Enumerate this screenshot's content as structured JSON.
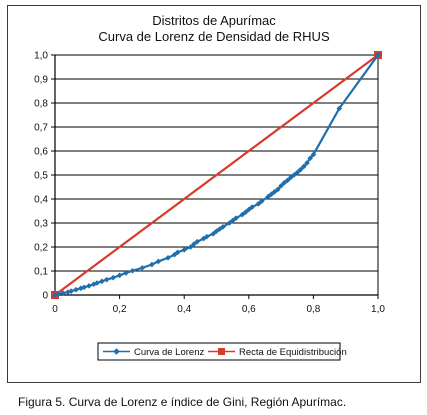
{
  "caption": "Figura 5. Curva de Lorenz e índice de Gini, Región Apurímac.",
  "chart_data": {
    "type": "line",
    "title": "Distritos de Apurímac",
    "subtitle": "Curva de Lorenz de Densidad de RHUS",
    "xlabel": "",
    "ylabel": "",
    "xlim": [
      0,
      1
    ],
    "ylim": [
      0,
      1
    ],
    "x_ticks": [
      "0",
      "0,2",
      "0,4",
      "0,6",
      "0,8",
      "1,0"
    ],
    "y_ticks": [
      "0",
      "0,1",
      "0,2",
      "0,3",
      "0,4",
      "0,5",
      "0,6",
      "0,7",
      "0,8",
      "0,9",
      "1,0"
    ],
    "grid": "horizontal",
    "legend_position": "bottom",
    "series": [
      {
        "name": "Curva de Lorenz",
        "color": "#1f6fad",
        "marker": "diamond",
        "points": [
          [
            0.0,
            0.0
          ],
          [
            0.01,
            0.004
          ],
          [
            0.025,
            0.008
          ],
          [
            0.04,
            0.012
          ],
          [
            0.05,
            0.016
          ],
          [
            0.065,
            0.022
          ],
          [
            0.08,
            0.028
          ],
          [
            0.09,
            0.032
          ],
          [
            0.105,
            0.038
          ],
          [
            0.12,
            0.045
          ],
          [
            0.13,
            0.05
          ],
          [
            0.145,
            0.057
          ],
          [
            0.16,
            0.064
          ],
          [
            0.18,
            0.072
          ],
          [
            0.2,
            0.082
          ],
          [
            0.22,
            0.092
          ],
          [
            0.24,
            0.101
          ],
          [
            0.27,
            0.113
          ],
          [
            0.3,
            0.127
          ],
          [
            0.32,
            0.14
          ],
          [
            0.35,
            0.155
          ],
          [
            0.37,
            0.168
          ],
          [
            0.38,
            0.178
          ],
          [
            0.4,
            0.188
          ],
          [
            0.42,
            0.2
          ],
          [
            0.43,
            0.212
          ],
          [
            0.44,
            0.222
          ],
          [
            0.46,
            0.235
          ],
          [
            0.47,
            0.243
          ],
          [
            0.49,
            0.255
          ],
          [
            0.5,
            0.266
          ],
          [
            0.51,
            0.275
          ],
          [
            0.52,
            0.284
          ],
          [
            0.54,
            0.3
          ],
          [
            0.55,
            0.31
          ],
          [
            0.56,
            0.32
          ],
          [
            0.58,
            0.335
          ],
          [
            0.59,
            0.345
          ],
          [
            0.6,
            0.356
          ],
          [
            0.61,
            0.366
          ],
          [
            0.63,
            0.38
          ],
          [
            0.64,
            0.391
          ],
          [
            0.66,
            0.41
          ],
          [
            0.67,
            0.42
          ],
          [
            0.68,
            0.43
          ],
          [
            0.69,
            0.44
          ],
          [
            0.7,
            0.455
          ],
          [
            0.71,
            0.468
          ],
          [
            0.72,
            0.478
          ],
          [
            0.73,
            0.49
          ],
          [
            0.74,
            0.5
          ],
          [
            0.75,
            0.51
          ],
          [
            0.76,
            0.522
          ],
          [
            0.77,
            0.535
          ],
          [
            0.78,
            0.55
          ],
          [
            0.79,
            0.57
          ],
          [
            0.8,
            0.585
          ],
          [
            0.88,
            0.777
          ],
          [
            1.0,
            1.0
          ]
        ]
      },
      {
        "name": "Recta de Equidistribución",
        "color": "#d93a2b",
        "marker": "square",
        "points": [
          [
            0.0,
            0.0
          ],
          [
            1.0,
            1.0
          ]
        ]
      }
    ]
  }
}
